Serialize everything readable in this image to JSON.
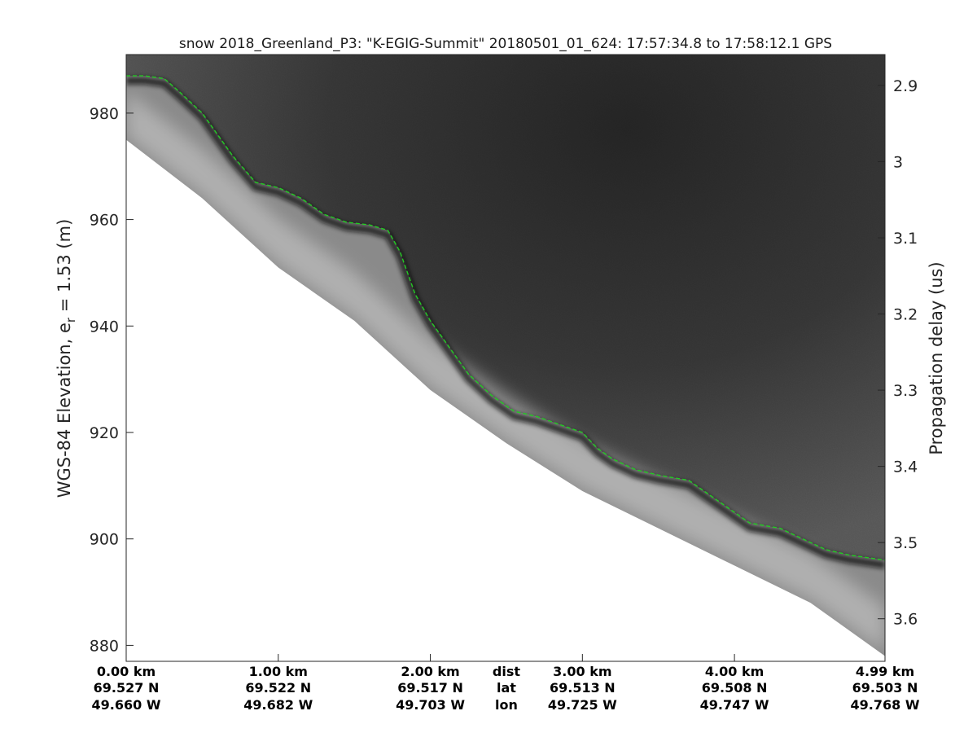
{
  "title": "snow 2018_Greenland_P3: \"K-EGIG-Summit\"  20180501_01_624: 17:57:34.8 to 17:58:12.1 GPS",
  "chart_data": {
    "type": "heatmap",
    "title": "snow 2018_Greenland_P3: \"K-EGIG-Summit\"  20180501_01_624: 17:57:34.8 to 17:58:12.1 GPS",
    "ylabel_left": {
      "main": "WGS-84 Elevation, e",
      "sub": "r",
      "rest": " = 1.53 (m)"
    },
    "ylabel_right": "Propagation delay (us)",
    "colormap": "gray",
    "grid": false,
    "xlim": [
      0,
      4.99
    ],
    "ylim_left": [
      877,
      991
    ],
    "yticks_left": [
      880,
      900,
      920,
      940,
      960,
      980
    ],
    "yticks_right": [
      2.9,
      3.0,
      3.1,
      3.2,
      3.3,
      3.4,
      3.5,
      3.6
    ],
    "yticks_right_labels": [
      "2.9",
      "3",
      "3.1",
      "3.2",
      "3.3",
      "3.4",
      "3.5",
      "3.6"
    ],
    "right_axis_map": {
      "value_a": 2.9,
      "elev_a": 985.2,
      "value_b": 3.6,
      "elev_b": 885.0
    },
    "surface_trace": {
      "name": "",
      "color": "#22cc22",
      "x_km": [
        0.0,
        0.12,
        0.25,
        0.35,
        0.5,
        0.7,
        0.85,
        1.0,
        1.15,
        1.3,
        1.45,
        1.6,
        1.72,
        1.8,
        1.9,
        2.0,
        2.1,
        2.25,
        2.4,
        2.55,
        2.7,
        2.85,
        3.0,
        3.1,
        3.2,
        3.35,
        3.5,
        3.7,
        3.8,
        3.95,
        4.1,
        4.3,
        4.45,
        4.6,
        4.75,
        4.99
      ],
      "elevation_m": [
        987,
        987,
        986.5,
        984,
        980,
        972,
        967,
        966,
        964,
        961,
        959.5,
        959,
        958,
        954,
        946,
        941,
        937,
        931,
        927,
        924,
        923,
        921.5,
        920,
        917,
        915,
        913,
        912,
        911,
        909,
        906,
        903,
        902,
        900,
        898,
        897,
        896
      ]
    },
    "bottom_edge": {
      "x_km": [
        0.0,
        0.5,
        1.0,
        1.5,
        2.0,
        2.5,
        3.0,
        3.5,
        4.0,
        4.5,
        4.99
      ],
      "elevation_m": [
        975,
        964,
        951,
        941,
        928,
        918,
        909,
        902,
        895,
        888,
        878
      ]
    },
    "x_ticks": [
      {
        "x": 0.0,
        "dist": "0.00 km",
        "lat": "69.527 N",
        "lon": "49.660 W"
      },
      {
        "x": 1.0,
        "dist": "1.00 km",
        "lat": "69.522 N",
        "lon": "49.682 W"
      },
      {
        "x": 2.0,
        "dist": "2.00 km",
        "lat": "69.517 N",
        "lon": "49.703 W"
      },
      {
        "x": 3.0,
        "dist": "3.00 km",
        "lat": "69.513 N",
        "lon": "49.725 W"
      },
      {
        "x": 4.0,
        "dist": "4.00 km",
        "lat": "69.508 N",
        "lon": "49.747 W"
      },
      {
        "x": 4.99,
        "dist": "4.99 km",
        "lat": "69.503 N",
        "lon": "49.768 W"
      }
    ],
    "row_labels": {
      "dist": "dist",
      "lat": "lat",
      "lon": "lon",
      "x": 2.5
    }
  }
}
